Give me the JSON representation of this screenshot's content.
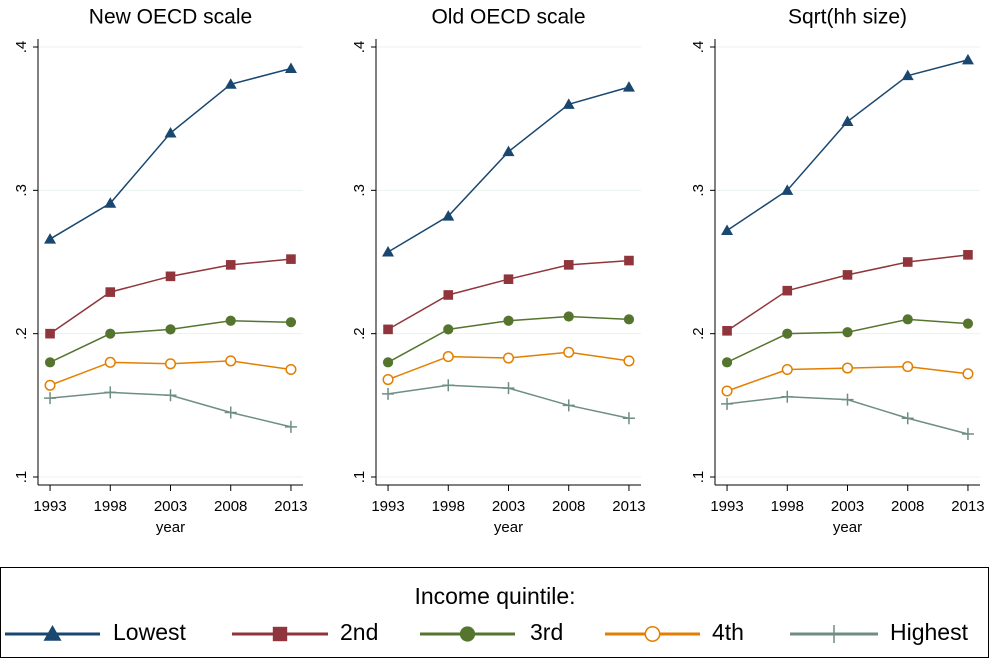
{
  "chart_data": [
    {
      "type": "line",
      "title": "New OECD scale",
      "x_label": "year",
      "x": [
        1993,
        1998,
        2003,
        2008,
        2013
      ],
      "xlim": [
        1992,
        2014
      ],
      "xticks": [
        1993,
        1998,
        2003,
        2008,
        2013
      ],
      "ylim": [
        0.1,
        0.4
      ],
      "yticks": [
        {
          "value": 0.1,
          "label": ".1"
        },
        {
          "value": 0.2,
          "label": ".2"
        },
        {
          "value": 0.3,
          "label": ".3"
        },
        {
          "value": 0.4,
          "label": ".4"
        }
      ],
      "grid": true,
      "series": [
        {
          "name": "Lowest",
          "color": "#1a476f",
          "marker": "triangle",
          "values": [
            0.266,
            0.291,
            0.34,
            0.374,
            0.385
          ]
        },
        {
          "name": "2nd",
          "color": "#90353b",
          "marker": "square",
          "values": [
            0.2,
            0.229,
            0.24,
            0.248,
            0.252
          ]
        },
        {
          "name": "3rd",
          "color": "#55752f",
          "marker": "circle",
          "values": [
            0.18,
            0.2,
            0.203,
            0.209,
            0.208
          ]
        },
        {
          "name": "4th",
          "color": "#e37e00",
          "marker": "hollow-circle",
          "values": [
            0.164,
            0.18,
            0.179,
            0.181,
            0.175
          ]
        },
        {
          "name": "Highest",
          "color": "#6e8e84",
          "marker": "plus",
          "values": [
            0.155,
            0.159,
            0.157,
            0.145,
            0.135
          ]
        }
      ]
    },
    {
      "type": "line",
      "title": "Old OECD scale",
      "x_label": "year",
      "x": [
        1993,
        1998,
        2003,
        2008,
        2013
      ],
      "xlim": [
        1992,
        2014
      ],
      "xticks": [
        1993,
        1998,
        2003,
        2008,
        2013
      ],
      "ylim": [
        0.1,
        0.4
      ],
      "yticks": [
        {
          "value": 0.1,
          "label": ".1"
        },
        {
          "value": 0.2,
          "label": ".2"
        },
        {
          "value": 0.3,
          "label": ".3"
        },
        {
          "value": 0.4,
          "label": ".4"
        }
      ],
      "grid": true,
      "series": [
        {
          "name": "Lowest",
          "color": "#1a476f",
          "marker": "triangle",
          "values": [
            0.257,
            0.282,
            0.327,
            0.36,
            0.372
          ]
        },
        {
          "name": "2nd",
          "color": "#90353b",
          "marker": "square",
          "values": [
            0.203,
            0.227,
            0.238,
            0.248,
            0.251
          ]
        },
        {
          "name": "3rd",
          "color": "#55752f",
          "marker": "circle",
          "values": [
            0.18,
            0.203,
            0.209,
            0.212,
            0.21
          ]
        },
        {
          "name": "4th",
          "color": "#e37e00",
          "marker": "hollow-circle",
          "values": [
            0.168,
            0.184,
            0.183,
            0.187,
            0.181
          ]
        },
        {
          "name": "Highest",
          "color": "#6e8e84",
          "marker": "plus",
          "values": [
            0.158,
            0.164,
            0.162,
            0.15,
            0.141
          ]
        }
      ]
    },
    {
      "type": "line",
      "title": "Sqrt(hh size)",
      "x_label": "year",
      "x": [
        1993,
        1998,
        2003,
        2008,
        2013
      ],
      "xlim": [
        1992,
        2014
      ],
      "xticks": [
        1993,
        1998,
        2003,
        2008,
        2013
      ],
      "ylim": [
        0.1,
        0.4
      ],
      "yticks": [
        {
          "value": 0.1,
          "label": ".1"
        },
        {
          "value": 0.2,
          "label": ".2"
        },
        {
          "value": 0.3,
          "label": ".3"
        },
        {
          "value": 0.4,
          "label": ".4"
        }
      ],
      "grid": true,
      "series": [
        {
          "name": "Lowest",
          "color": "#1a476f",
          "marker": "triangle",
          "values": [
            0.272,
            0.3,
            0.348,
            0.38,
            0.391
          ]
        },
        {
          "name": "2nd",
          "color": "#90353b",
          "marker": "square",
          "values": [
            0.202,
            0.23,
            0.241,
            0.25,
            0.255
          ]
        },
        {
          "name": "3rd",
          "color": "#55752f",
          "marker": "circle",
          "values": [
            0.18,
            0.2,
            0.201,
            0.21,
            0.207
          ]
        },
        {
          "name": "4th",
          "color": "#e37e00",
          "marker": "hollow-circle",
          "values": [
            0.16,
            0.175,
            0.176,
            0.177,
            0.172
          ]
        },
        {
          "name": "Highest",
          "color": "#6e8e84",
          "marker": "plus",
          "values": [
            0.151,
            0.156,
            0.154,
            0.141,
            0.13
          ]
        }
      ]
    }
  ],
  "legend": {
    "title": "Income quintile:"
  }
}
